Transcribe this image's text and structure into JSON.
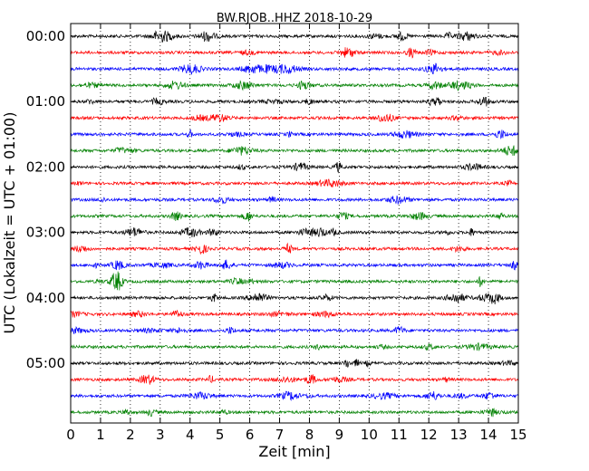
{
  "chart_data": {
    "type": "line",
    "subtype": "dayplot-seismogram",
    "title": "BW.RJOB..HHZ 2018-10-29",
    "xlabel": "Zeit  [min]",
    "ylabel": "UTC (Lokalzeit = UTC + 01:00)",
    "xlim": [
      0,
      15
    ],
    "x_ticks": [
      "0",
      "1",
      "2",
      "3",
      "4",
      "5",
      "6",
      "7",
      "8",
      "9",
      "10",
      "11",
      "12",
      "13",
      "14",
      "15"
    ],
    "y_ticks": [
      "00:00",
      "01:00",
      "02:00",
      "03:00",
      "04:00",
      "05:00"
    ],
    "traces_per_hour": 4,
    "trace_count": 24,
    "minutes_per_trace": 15,
    "trace_colors": [
      "#000000",
      "#ff0000",
      "#0000ff",
      "#008000"
    ],
    "grid": "vertical dotted lines at each minute"
  }
}
